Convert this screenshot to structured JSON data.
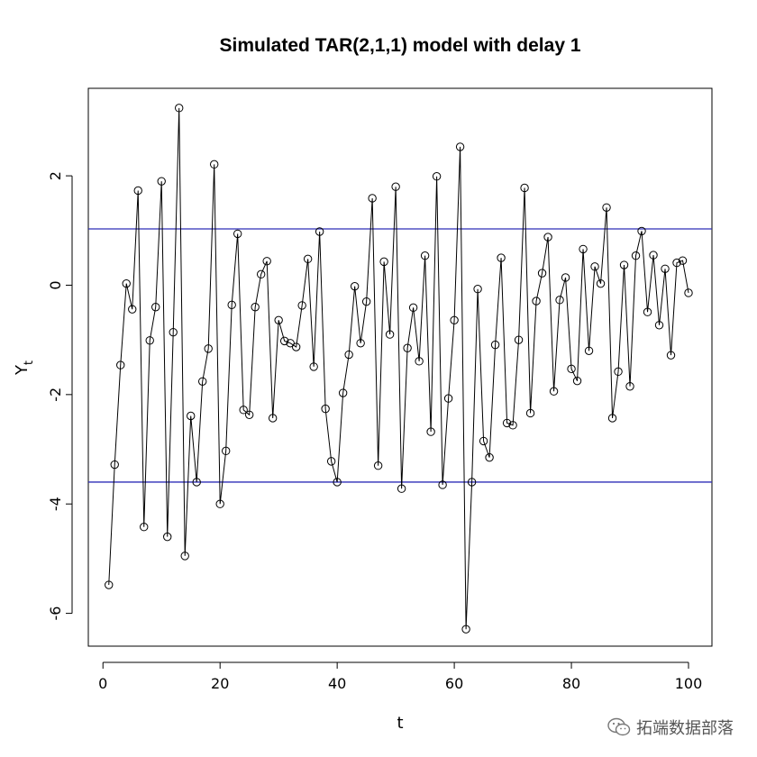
{
  "chart_data": {
    "type": "line",
    "title": "Simulated TAR(2,1,1) model with delay 1",
    "xlabel": "t",
    "ylabel": "Y",
    "ylabel_subscript": "t",
    "xlim": [
      -2.5,
      104
    ],
    "ylim": [
      -6.6,
      3.6
    ],
    "xticks": [
      0,
      20,
      40,
      60,
      80,
      100
    ],
    "yticks": [
      -6,
      -4,
      -2,
      0,
      2
    ],
    "marker": "open-circle",
    "line_color": "#000000",
    "hlines": [
      {
        "y": 1.03,
        "color": "#2e2eb8"
      },
      {
        "y": -3.6,
        "color": "#2e2eb8"
      }
    ],
    "series": [
      {
        "x": [
          1,
          2,
          3,
          4,
          5,
          6,
          7,
          8,
          9,
          10,
          11,
          12,
          13,
          14,
          15,
          16,
          17,
          18,
          19,
          20,
          21,
          22,
          23,
          24,
          25,
          26,
          27,
          28,
          29,
          30,
          31,
          32,
          33,
          34,
          35,
          36,
          37,
          38,
          39,
          40,
          41,
          42,
          43,
          44,
          45,
          46,
          47,
          48,
          49,
          50,
          51,
          52,
          53,
          54,
          55,
          56,
          57,
          58,
          59,
          60,
          61,
          62,
          63,
          64,
          65,
          66,
          67,
          68,
          69,
          70,
          71,
          72,
          73,
          74,
          75,
          76,
          77,
          78,
          79,
          80,
          81,
          82,
          83,
          84,
          85,
          86,
          87,
          88,
          89,
          90,
          91,
          92,
          93,
          94,
          95,
          96,
          97,
          98,
          99,
          100
        ],
        "values": [
          -5.48,
          -3.28,
          -1.46,
          0.03,
          -0.44,
          1.73,
          -4.42,
          -1.01,
          -0.4,
          1.9,
          -4.6,
          -0.86,
          3.24,
          -4.95,
          -2.39,
          -3.6,
          -1.76,
          -1.16,
          2.21,
          -4.0,
          -3.03,
          -0.36,
          0.94,
          -2.28,
          -2.37,
          -0.4,
          0.2,
          0.44,
          -2.43,
          -0.64,
          -1.02,
          -1.06,
          -1.13,
          -0.37,
          0.48,
          -1.49,
          0.98,
          -2.26,
          -3.22,
          -3.6,
          -1.97,
          -1.27,
          -0.02,
          -1.06,
          -0.3,
          1.59,
          -3.3,
          0.43,
          -0.9,
          1.8,
          -3.72,
          -1.15,
          -0.41,
          -1.39,
          0.54,
          -2.68,
          1.99,
          -3.65,
          -2.07,
          -0.64,
          2.53,
          -6.29,
          -3.6,
          -0.07,
          -2.85,
          -3.15,
          -1.09,
          0.5,
          -2.52,
          -2.56,
          -1.0,
          1.78,
          -2.34,
          -0.29,
          0.22,
          0.88,
          -1.94,
          -0.27,
          0.14,
          -1.53,
          -1.75,
          0.66,
          -1.2,
          0.34,
          0.03,
          1.42,
          -2.43,
          -1.58,
          0.37,
          -1.85,
          0.54,
          0.99,
          -0.49,
          0.55,
          -0.73,
          0.3,
          -1.28,
          0.41,
          0.45,
          -0.14
        ]
      }
    ]
  },
  "watermark": {
    "text": "拓端数据部落",
    "icon": "wechat-icon"
  }
}
